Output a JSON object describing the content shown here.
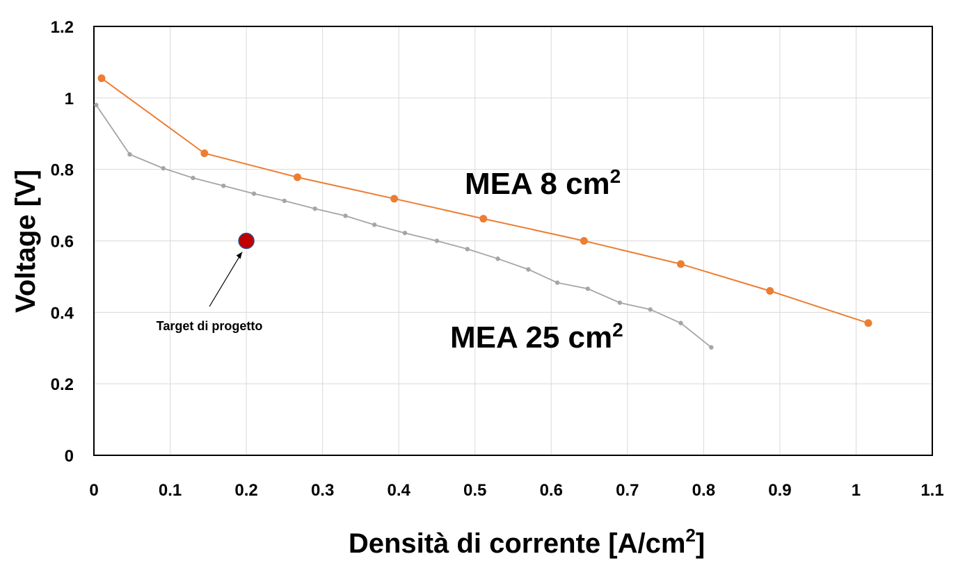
{
  "chart_data": {
    "type": "line",
    "title": "",
    "xlabel": "Densità di corrente [A/cm",
    "xlabel_sup": "2",
    "xlabel_end": "]",
    "ylabel": "Voltage [V]",
    "xlim": [
      0,
      1.1
    ],
    "ylim": [
      0,
      1.2
    ],
    "xticks": [
      0,
      0.1,
      0.2,
      0.3,
      0.4,
      0.5,
      0.6,
      0.7,
      0.8,
      0.9,
      1,
      1.1
    ],
    "xtick_labels": [
      "0",
      "0.1",
      "0.2",
      "0.3",
      "0.4",
      "0.5",
      "0.6",
      "0.7",
      "0.8",
      "0.9",
      "1",
      "1.1"
    ],
    "yticks": [
      0,
      0.2,
      0.4,
      0.6,
      0.8,
      1,
      1.2
    ],
    "ytick_labels": [
      "0",
      "0.2",
      "0.4",
      "0.6",
      "0.8",
      "1",
      "1.2"
    ],
    "grid": true,
    "legend": "none",
    "series": [
      {
        "label_text": "MEA 8 cm",
        "label_sup": "2",
        "color": "#ED7D31",
        "x": [
          0.01,
          0.145,
          0.267,
          0.394,
          0.511,
          0.643,
          0.77,
          0.887,
          1.016
        ],
        "y": [
          1.055,
          0.845,
          0.778,
          0.718,
          0.662,
          0.6,
          0.535,
          0.46,
          0.37
        ]
      },
      {
        "label_text": "MEA 25 cm",
        "label_sup": "2",
        "color": "#A5A5A5",
        "x": [
          0.003,
          0.047,
          0.091,
          0.13,
          0.17,
          0.21,
          0.25,
          0.29,
          0.33,
          0.368,
          0.408,
          0.45,
          0.49,
          0.53,
          0.57,
          0.608,
          0.648,
          0.69,
          0.73,
          0.77,
          0.81
        ],
        "y": [
          0.98,
          0.842,
          0.803,
          0.776,
          0.754,
          0.732,
          0.712,
          0.69,
          0.67,
          0.645,
          0.622,
          0.6,
          0.577,
          0.55,
          0.52,
          0.483,
          0.466,
          0.427,
          0.408,
          0.37,
          0.302
        ]
      }
    ],
    "target": {
      "label": "Target di progetto",
      "x": 0.2,
      "y": 0.6,
      "color": "#C00000"
    }
  }
}
